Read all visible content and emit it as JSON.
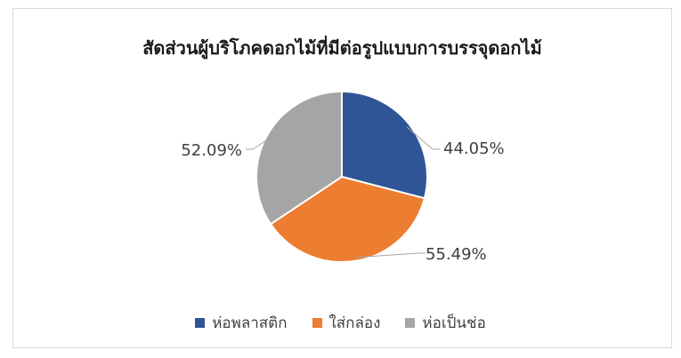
{
  "chart_data": {
    "type": "pie",
    "title": "สัดส่วนผู้บริโภคดอกไม้ที่มีต่อรูปแบบการบรรจุดอกไม้",
    "categories": [
      "ห่อพลาสติก",
      "ใส่กล่อง",
      "ห่อเป็นช่อ"
    ],
    "values": [
      44.05,
      55.49,
      52.09
    ],
    "labels": [
      "44.05%",
      "55.49%",
      "52.09%"
    ],
    "colors": [
      "#2f5597",
      "#ed7d31",
      "#a5a5a5"
    ],
    "legend": "bottom"
  }
}
